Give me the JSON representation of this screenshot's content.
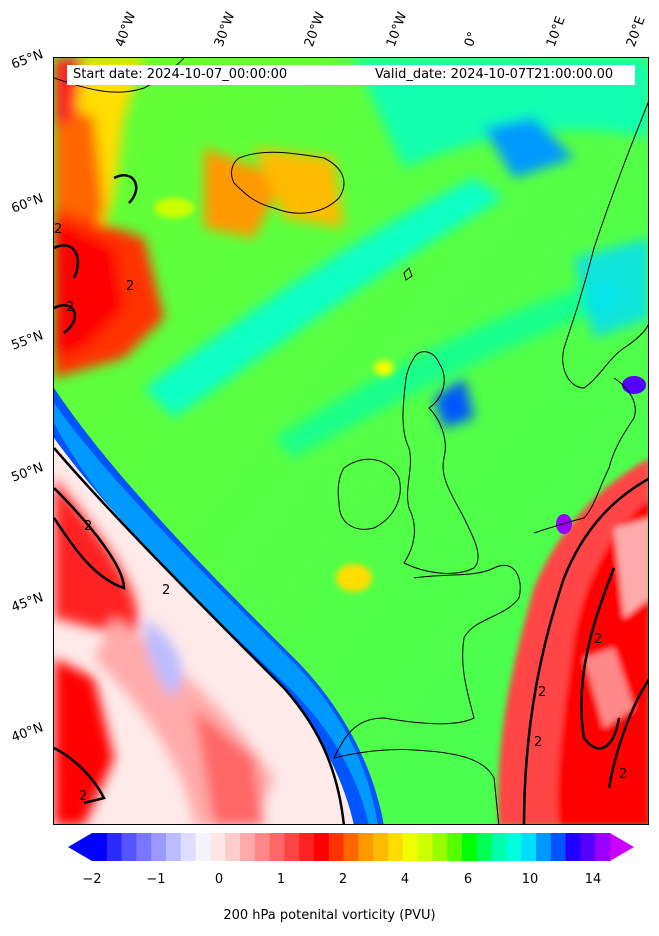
{
  "header": {
    "start_date": "Start date: 2024-10-07_00:00:00",
    "valid_date": "Valid_date: 2024-10-07T21:00:00.00"
  },
  "longitude_labels": [
    "40°W",
    "30°W",
    "20°W",
    "10°W",
    "0°",
    "10°E",
    "20°E"
  ],
  "latitude_labels": [
    "65°N",
    "60°N",
    "55°N",
    "50°N",
    "45°N",
    "40°N"
  ],
  "colorbar": {
    "label": "200 hPa potenital vorticity (PVU)",
    "ticks": [
      "−2",
      "−1",
      "0",
      "1",
      "2",
      "4",
      "6",
      "10",
      "14"
    ],
    "colors": [
      "#0000ff",
      "#2a2aff",
      "#5555ff",
      "#7777ff",
      "#9999ff",
      "#bbbbff",
      "#ddddff",
      "#f4f4ff",
      "#ffe6e6",
      "#ffcccc",
      "#ffaaaa",
      "#ff8888",
      "#ff6666",
      "#ff4444",
      "#ff2222",
      "#ff0000",
      "#ff3300",
      "#ff6600",
      "#ff9900",
      "#ffbb00",
      "#ffdd00",
      "#eeff00",
      "#ccff00",
      "#99ff00",
      "#55ff00",
      "#00ff00",
      "#00ff55",
      "#00ffaa",
      "#00ffdd",
      "#00ddff",
      "#0099ff",
      "#0055ff",
      "#2200ff",
      "#5500ff",
      "#9900ff"
    ],
    "under_color": "#0000ff",
    "over_color": "#cc00ff"
  },
  "contour_label": "2"
}
